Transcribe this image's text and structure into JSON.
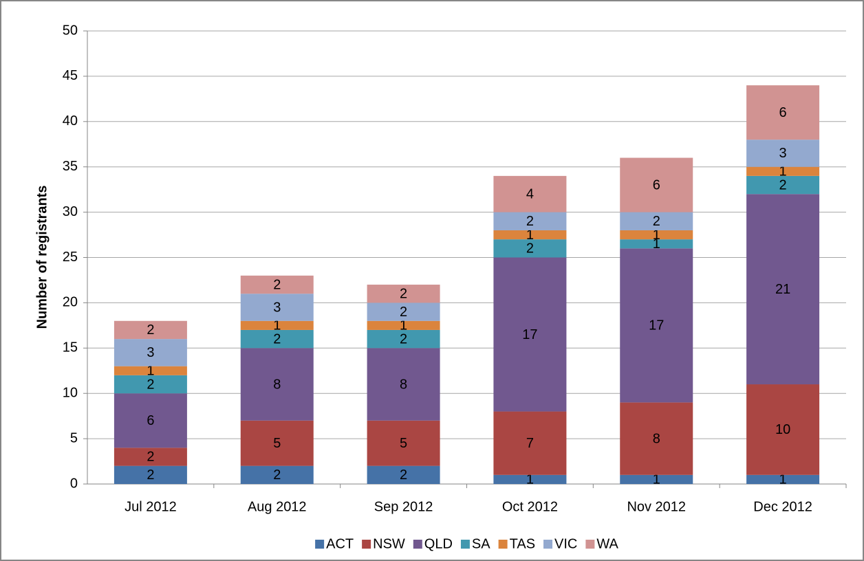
{
  "chart_data": {
    "type": "stacked_bar",
    "y_label": "Number of registrants",
    "categories": [
      "Jul 2012",
      "Aug 2012",
      "Sep 2012",
      "Oct 2012",
      "Nov 2012",
      "Dec 2012"
    ],
    "series": [
      {
        "name": "ACT",
        "color": "#4572a7",
        "values": [
          2,
          2,
          2,
          1,
          1,
          1
        ]
      },
      {
        "name": "NSW",
        "color": "#aa4643",
        "values": [
          2,
          5,
          5,
          7,
          8,
          10
        ]
      },
      {
        "name": "QLD",
        "color": "#71588f",
        "values": [
          6,
          8,
          8,
          17,
          17,
          21
        ]
      },
      {
        "name": "SA",
        "color": "#4198af",
        "values": [
          2,
          2,
          2,
          2,
          1,
          2
        ]
      },
      {
        "name": "TAS",
        "color": "#db843d",
        "values": [
          1,
          1,
          1,
          1,
          1,
          1
        ]
      },
      {
        "name": "VIC",
        "color": "#93a9cf",
        "values": [
          3,
          3,
          2,
          2,
          2,
          3
        ]
      },
      {
        "name": "WA",
        "color": "#d19392",
        "values": [
          2,
          2,
          2,
          4,
          6,
          6
        ]
      }
    ],
    "ylim": [
      0,
      50
    ],
    "yticks": [
      0,
      5,
      10,
      15,
      20,
      25,
      30,
      35,
      40,
      45,
      50
    ],
    "grid": true,
    "legend": "bottom"
  }
}
